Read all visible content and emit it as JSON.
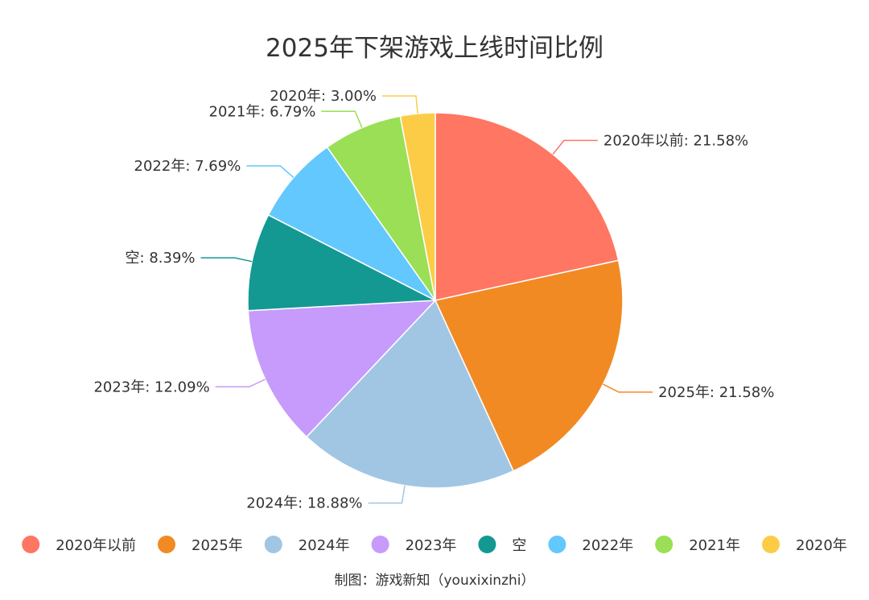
{
  "chart_data": {
    "type": "pie",
    "title": "2025年下架游戏上线时间比例",
    "source_note": "制图：游戏新知（youxixinzhi）",
    "legend_position": "bottom",
    "slices": [
      {
        "name": "2020年以前",
        "value": 21.58,
        "label": "2020年以前: 21.58%",
        "color": "#FF7662"
      },
      {
        "name": "2025年",
        "value": 21.58,
        "label": "2025年: 21.58%",
        "color": "#F28A23"
      },
      {
        "name": "2024年",
        "value": 18.88,
        "label": "2024年: 18.88%",
        "color": "#A1C6E3"
      },
      {
        "name": "2023年",
        "value": 12.09,
        "label": "2023年: 12.09%",
        "color": "#C69BFB"
      },
      {
        "name": "空",
        "value": 8.39,
        "label": "空: 8.39%",
        "color": "#139992"
      },
      {
        "name": "2022年",
        "value": 7.69,
        "label": "2022年: 7.69%",
        "color": "#63C8FD"
      },
      {
        "name": "2021年",
        "value": 6.79,
        "label": "2021年: 6.79%",
        "color": "#9ADF56"
      },
      {
        "name": "2020年",
        "value": 3.0,
        "label": "2020年: 3.00%",
        "color": "#FDCC47"
      }
    ]
  }
}
